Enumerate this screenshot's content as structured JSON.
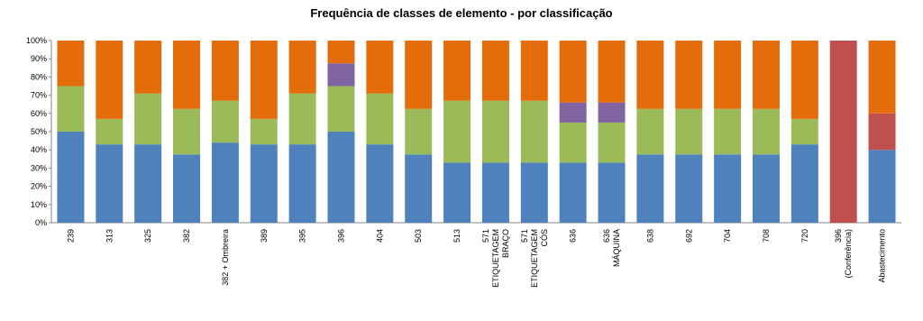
{
  "chart_data": {
    "type": "stacked-bar-100",
    "title": "Frequência de classes de elemento - por classificação",
    "categories": [
      [
        "239"
      ],
      [
        "313"
      ],
      [
        "325"
      ],
      [
        "382"
      ],
      [
        "382 + Ombreira"
      ],
      [
        "389"
      ],
      [
        "395"
      ],
      [
        "396"
      ],
      [
        "404"
      ],
      [
        "503"
      ],
      [
        "513"
      ],
      [
        "571",
        "ETIQUETAGEM",
        "BRAÇO"
      ],
      [
        "571",
        "ETIQUETAGEM",
        "CÓS"
      ],
      [
        "636"
      ],
      [
        "636",
        "MÁQUINA"
      ],
      [
        "638"
      ],
      [
        "692"
      ],
      [
        "704"
      ],
      [
        "708"
      ],
      [
        "720"
      ],
      [
        "396",
        "(Conferência)"
      ],
      [
        "Abastecimento"
      ]
    ],
    "series": [
      {
        "color": "#4f81bd",
        "values": [
          50,
          43,
          43,
          37.5,
          44,
          43,
          43,
          50,
          43,
          37.5,
          33,
          33,
          33,
          33,
          33,
          37.5,
          37.5,
          37.5,
          37.5,
          43,
          0,
          40
        ]
      },
      {
        "color": "#9bbb59",
        "values": [
          25,
          14,
          28,
          25,
          23,
          14,
          28,
          25,
          28,
          25,
          34,
          34,
          34,
          22,
          22,
          25,
          25,
          25,
          25,
          14,
          0,
          0
        ]
      },
      {
        "color": "#8064a2",
        "values": [
          0,
          0,
          0,
          0,
          0,
          0,
          0,
          12.5,
          0,
          0,
          0,
          0,
          0,
          11,
          11,
          0,
          0,
          0,
          0,
          0,
          0,
          0
        ]
      },
      {
        "color": "#c0504d",
        "values": [
          0,
          0,
          0,
          0,
          0,
          0,
          0,
          0,
          0,
          0,
          0,
          0,
          0,
          0,
          0,
          0,
          0,
          0,
          0,
          0,
          100,
          20
        ]
      },
      {
        "color": "#e46c0a",
        "values": [
          25,
          43,
          29,
          37.5,
          33,
          43,
          29,
          12.5,
          29,
          37.5,
          33,
          33,
          33,
          34,
          34,
          37.5,
          37.5,
          37.5,
          37.5,
          43,
          0,
          40
        ]
      }
    ],
    "ylim": [
      0,
      100
    ],
    "yticks": [
      {
        "value": 0,
        "label": "0%"
      },
      {
        "value": 10,
        "label": "10%"
      },
      {
        "value": 20,
        "label": "20%"
      },
      {
        "value": 30,
        "label": "30%"
      },
      {
        "value": 40,
        "label": "40%"
      },
      {
        "value": 50,
        "label": "50%"
      },
      {
        "value": 60,
        "label": "60%"
      },
      {
        "value": 70,
        "label": "70%"
      },
      {
        "value": 80,
        "label": "80%"
      },
      {
        "value": 90,
        "label": "90%"
      },
      {
        "value": 100,
        "label": "100%"
      }
    ],
    "grid": false
  }
}
